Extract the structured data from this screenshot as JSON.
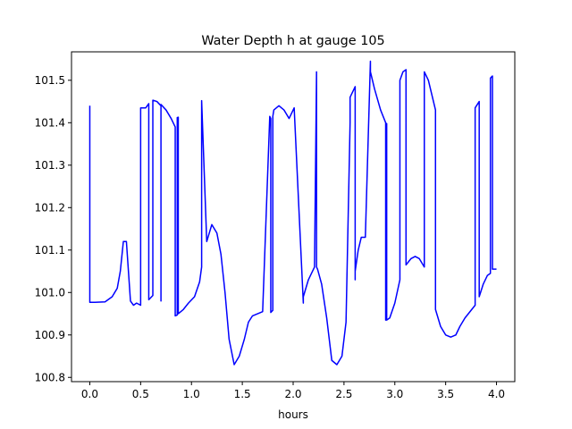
{
  "chart_data": {
    "type": "line",
    "title": "Water Depth h at gauge 105",
    "xlabel": "hours",
    "ylabel": "",
    "xlim": [
      -0.18,
      4.18
    ],
    "ylim": [
      100.79,
      101.567
    ],
    "xticks": [
      0.0,
      0.5,
      1.0,
      1.5,
      2.0,
      2.5,
      3.0,
      3.5,
      4.0
    ],
    "xtick_labels": [
      "0.0",
      "0.5",
      "1.0",
      "1.5",
      "2.0",
      "2.5",
      "3.0",
      "3.5",
      "4.0"
    ],
    "yticks": [
      100.8,
      100.9,
      101.0,
      101.1,
      101.2,
      101.3,
      101.4,
      101.5
    ],
    "ytick_labels": [
      "100.8",
      "100.9",
      "101.0",
      "101.1",
      "101.2",
      "101.3",
      "101.4",
      "101.5"
    ],
    "grid": false,
    "series": [
      {
        "color": "#0000ff",
        "x": [
          0.0,
          0.0,
          0.05,
          0.15,
          0.22,
          0.27,
          0.3,
          0.33,
          0.36,
          0.38,
          0.4,
          0.43,
          0.46,
          0.5,
          0.5,
          0.55,
          0.58,
          0.58,
          0.62,
          0.62,
          0.66,
          0.7,
          0.7,
          0.7,
          0.75,
          0.8,
          0.84,
          0.84,
          0.86,
          0.86,
          0.87,
          0.87,
          0.92,
          0.97,
          1.03,
          1.08,
          1.1,
          1.1,
          1.15,
          1.2,
          1.25,
          1.29,
          1.33,
          1.37,
          1.42,
          1.47,
          1.52,
          1.56,
          1.6,
          1.65,
          1.7,
          1.77,
          1.78,
          1.78,
          1.8,
          1.8,
          1.81,
          1.86,
          1.91,
          1.96,
          2.01,
          2.1,
          2.1,
          2.15,
          2.21,
          2.23,
          2.23,
          2.24,
          2.24,
          2.28,
          2.33,
          2.38,
          2.43,
          2.48,
          2.52,
          2.56,
          2.56,
          2.61,
          2.61,
          2.61,
          2.64,
          2.67,
          2.71,
          2.76,
          2.76,
          2.8,
          2.86,
          2.91,
          2.91,
          2.91,
          2.92,
          2.92,
          2.95,
          3.0,
          3.05,
          3.05,
          3.08,
          3.11,
          3.11,
          3.16,
          3.2,
          3.24,
          3.29,
          3.29,
          3.33,
          3.4,
          3.4,
          3.45,
          3.5,
          3.55,
          3.6,
          3.64,
          3.69,
          3.74,
          3.79,
          3.79,
          3.83,
          3.83,
          3.87,
          3.91,
          3.94,
          3.94,
          3.96,
          3.96,
          4.0
        ],
        "y": [
          101.44,
          100.977,
          100.977,
          100.978,
          100.99,
          101.01,
          101.05,
          101.12,
          101.12,
          101.05,
          100.98,
          100.97,
          100.975,
          100.97,
          101.435,
          101.435,
          101.445,
          100.983,
          100.993,
          101.453,
          101.45,
          101.44,
          100.98,
          101.443,
          101.43,
          101.41,
          101.39,
          100.945,
          100.947,
          101.412,
          101.413,
          100.95,
          100.96,
          100.975,
          100.99,
          101.025,
          101.06,
          101.452,
          101.12,
          101.16,
          101.14,
          101.09,
          101.0,
          100.89,
          100.83,
          100.85,
          100.89,
          100.93,
          100.945,
          100.95,
          100.955,
          101.415,
          101.41,
          100.953,
          100.958,
          101.415,
          101.43,
          101.44,
          101.43,
          101.41,
          101.435,
          100.975,
          100.99,
          101.03,
          101.06,
          101.52,
          101.06,
          101.055,
          101.055,
          101.02,
          100.94,
          100.84,
          100.83,
          100.85,
          100.93,
          101.4,
          101.46,
          101.485,
          101.03,
          101.05,
          101.1,
          101.13,
          101.13,
          101.545,
          101.52,
          101.48,
          101.43,
          101.4,
          100.935,
          101.398,
          101.398,
          100.935,
          100.94,
          100.975,
          101.03,
          101.5,
          101.52,
          101.525,
          101.065,
          101.08,
          101.085,
          101.08,
          101.06,
          101.52,
          101.5,
          101.43,
          100.96,
          100.92,
          100.9,
          100.895,
          100.9,
          100.92,
          100.94,
          100.955,
          100.97,
          101.435,
          101.45,
          100.99,
          101.02,
          101.04,
          101.045,
          101.505,
          101.51,
          101.055,
          101.055
        ]
      }
    ]
  }
}
